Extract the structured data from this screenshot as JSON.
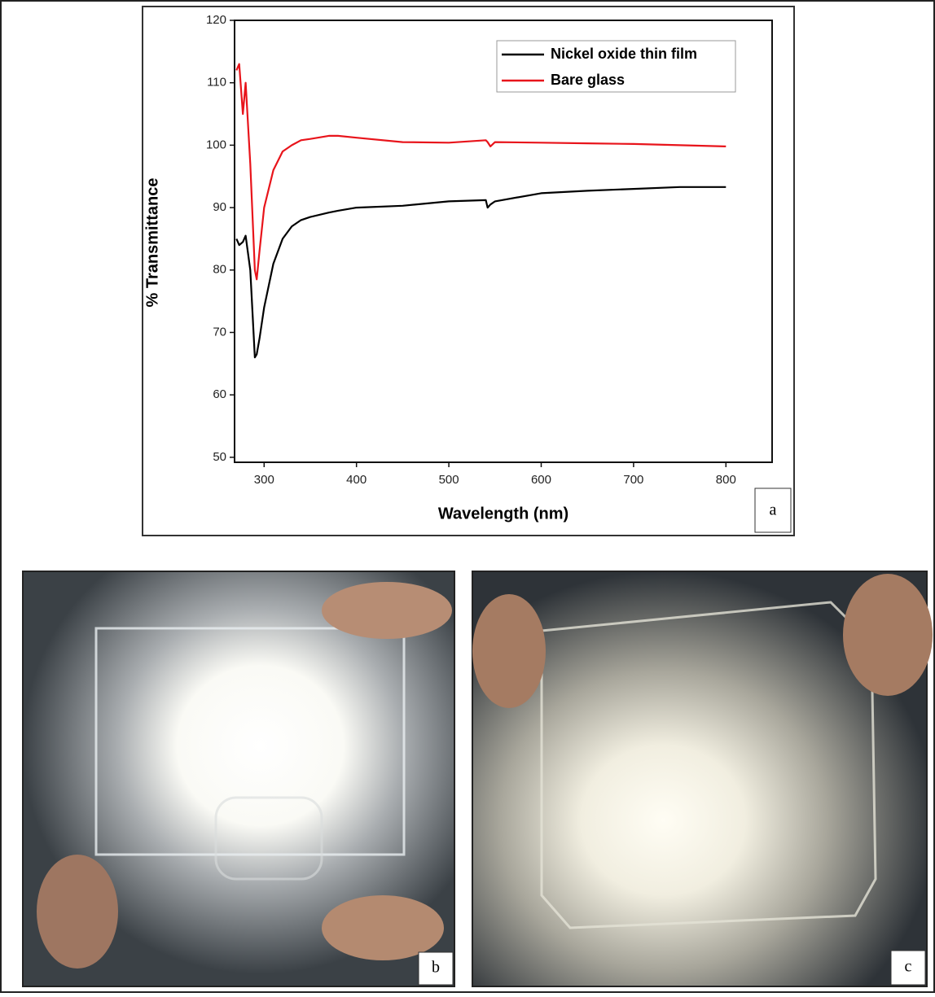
{
  "chart_data": {
    "type": "line",
    "x_label": "Wavelength (nm)",
    "y_label": "% Transmittance",
    "panel_label": "a",
    "x": [
      270,
      273,
      277,
      280,
      285,
      290,
      292,
      295,
      300,
      310,
      320,
      330,
      340,
      350,
      370,
      380,
      400,
      450,
      500,
      540,
      542,
      545,
      550,
      600,
      650,
      700,
      750,
      800
    ],
    "series": [
      {
        "name": "Nickel oxide thin film",
        "color": "#000000",
        "values": [
          85,
          84,
          84.5,
          85.5,
          80,
          66,
          66.5,
          69,
          74,
          81,
          85,
          87,
          88,
          88.5,
          89.2,
          89.5,
          90,
          90.3,
          91,
          91.2,
          90,
          90.5,
          91,
          92.3,
          92.7,
          93,
          93.3,
          93.3
        ]
      },
      {
        "name": "Bare glass",
        "color": "#e8141b",
        "values": [
          112,
          113,
          105,
          110,
          97,
          80,
          78.5,
          83,
          90,
          96,
          99,
          100,
          100.8,
          101,
          101.5,
          101.5,
          101.2,
          100.5,
          100.4,
          100.8,
          100.5,
          99.8,
          100.5,
          100.4,
          100.3,
          100.2,
          100,
          99.8
        ]
      }
    ],
    "xlim": [
      268,
      850
    ],
    "xticks": [
      300,
      400,
      500,
      600,
      700,
      800
    ],
    "ylim": [
      49.2,
      120
    ],
    "yticks": [
      50,
      60,
      70,
      80,
      90,
      100,
      110,
      120
    ],
    "legend": "upper right"
  },
  "photos": [
    {
      "label": "b"
    },
    {
      "label": "c"
    }
  ]
}
